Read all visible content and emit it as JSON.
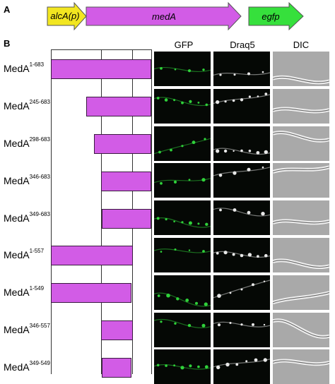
{
  "panel_a": {
    "letter": "A",
    "constructs": [
      {
        "label": "alcA(p)",
        "color": "#f2e620"
      },
      {
        "label": "medA",
        "color": "#d25ce6"
      },
      {
        "label": "egfp",
        "color": "#36e03c"
      }
    ]
  },
  "panel_b": {
    "letter": "B",
    "columns": [
      "GFP",
      "Draq5",
      "DIC"
    ],
    "rows": [
      {
        "name": "MedA",
        "range": "1-683",
        "start": 1,
        "end": 683
      },
      {
        "name": "MedA",
        "range": "245-683",
        "start": 245,
        "end": 683
      },
      {
        "name": "MedA",
        "range": "298-683",
        "start": 298,
        "end": 683
      },
      {
        "name": "MedA",
        "range": "346-683",
        "start": 346,
        "end": 683
      },
      {
        "name": "MedA",
        "range": "349-683",
        "start": 349,
        "end": 683
      },
      {
        "name": "MedA",
        "range": "1-557",
        "start": 1,
        "end": 557
      },
      {
        "name": "MedA",
        "range": "1-549",
        "start": 1,
        "end": 549
      },
      {
        "name": "MedA",
        "range": "346-557",
        "start": 346,
        "end": 557
      },
      {
        "name": "MedA",
        "range": "349-549",
        "start": 349,
        "end": 549
      }
    ],
    "bar_color": "#d25ce6"
  }
}
